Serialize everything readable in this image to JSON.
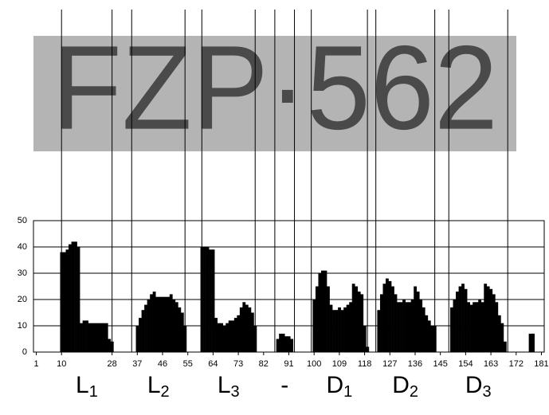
{
  "chart_data": {
    "type": "bar",
    "plate_text": "FZP·562",
    "x": [
      1,
      2,
      3,
      4,
      5,
      6,
      7,
      8,
      9,
      10,
      11,
      12,
      13,
      14,
      15,
      16,
      17,
      18,
      19,
      20,
      21,
      22,
      23,
      24,
      25,
      26,
      27,
      28,
      29,
      30,
      31,
      32,
      33,
      34,
      35,
      36,
      37,
      38,
      39,
      40,
      41,
      42,
      43,
      44,
      45,
      46,
      47,
      48,
      49,
      50,
      51,
      52,
      53,
      54,
      55,
      56,
      57,
      58,
      59,
      60,
      61,
      62,
      63,
      64,
      65,
      66,
      67,
      68,
      69,
      70,
      71,
      72,
      73,
      74,
      75,
      76,
      77,
      78,
      79,
      80,
      81,
      82,
      83,
      84,
      85,
      86,
      87,
      88,
      89,
      90,
      91,
      92,
      93,
      94,
      95,
      96,
      97,
      98,
      99,
      100,
      101,
      102,
      103,
      104,
      105,
      106,
      107,
      108,
      109,
      110,
      111,
      112,
      113,
      114,
      115,
      116,
      117,
      118,
      119,
      120,
      121,
      122,
      123,
      124,
      125,
      126,
      127,
      128,
      129,
      130,
      131,
      132,
      133,
      134,
      135,
      136,
      137,
      138,
      139,
      140,
      141,
      142,
      143,
      144,
      145,
      146,
      147,
      148,
      149,
      150,
      151,
      152,
      153,
      154,
      155,
      156,
      157,
      158,
      159,
      160,
      161,
      162,
      163,
      164,
      165,
      166,
      167,
      168,
      169,
      170,
      171,
      172,
      173,
      174,
      175,
      176,
      177,
      178,
      179,
      180,
      181
    ],
    "values": [
      0,
      0,
      0,
      0,
      0,
      0,
      0,
      0,
      0,
      38,
      38,
      39,
      41,
      42,
      42,
      40,
      11,
      12,
      12,
      11,
      11,
      11,
      11,
      11,
      11,
      11,
      5,
      4,
      0,
      0,
      0,
      0,
      0,
      0,
      0,
      0,
      10,
      13,
      16,
      18,
      20,
      22,
      23,
      21,
      21,
      21,
      21,
      21,
      22,
      20,
      19,
      17,
      15,
      10,
      0,
      0,
      0,
      0,
      0,
      40,
      40,
      40,
      39,
      39,
      13,
      11,
      11,
      10,
      11,
      12,
      12,
      13,
      14,
      17,
      19,
      18,
      17,
      15,
      10,
      0,
      0,
      0,
      0,
      0,
      0,
      0,
      5,
      7,
      7,
      6,
      6,
      5,
      0,
      0,
      0,
      0,
      0,
      0,
      0,
      20,
      25,
      30,
      31,
      31,
      25,
      18,
      16,
      16,
      17,
      16,
      17,
      18,
      19,
      26,
      25,
      23,
      22,
      10,
      2,
      0,
      0,
      0,
      16,
      22,
      26,
      28,
      27,
      25,
      22,
      19,
      19,
      20,
      19,
      19,
      20,
      25,
      23,
      20,
      17,
      14,
      12,
      10,
      10,
      0,
      0,
      0,
      0,
      0,
      17,
      20,
      23,
      25,
      26,
      24,
      19,
      18,
      19,
      19,
      20,
      19,
      26,
      25,
      24,
      22,
      19,
      14,
      11,
      4,
      0,
      0,
      0,
      0,
      0,
      0,
      0,
      0,
      7,
      7,
      0,
      0,
      0
    ],
    "color": "#000000",
    "xlim": [
      0,
      182
    ],
    "xticks": [
      1,
      10,
      28,
      37,
      46,
      55,
      64,
      73,
      82,
      91,
      100,
      109,
      118,
      127,
      136,
      145,
      154,
      163,
      172,
      181
    ],
    "ylim": [
      0,
      50
    ],
    "yticks": [
      0,
      10,
      20,
      30,
      40,
      50
    ],
    "grid": true,
    "segments": [
      {
        "label": "L",
        "subscript": "1",
        "start": 10,
        "end": 28
      },
      {
        "label": "L",
        "subscript": "2",
        "start": 35,
        "end": 54
      },
      {
        "label": "L",
        "subscript": "3",
        "start": 60,
        "end": 79
      },
      {
        "label": "-",
        "start": 86,
        "end": 93
      },
      {
        "label": "D",
        "subscript": "1",
        "start": 99,
        "end": 119
      },
      {
        "label": "D",
        "subscript": "2",
        "start": 122,
        "end": 143
      },
      {
        "label": "D",
        "subscript": "3",
        "start": 148,
        "end": 169
      }
    ]
  }
}
